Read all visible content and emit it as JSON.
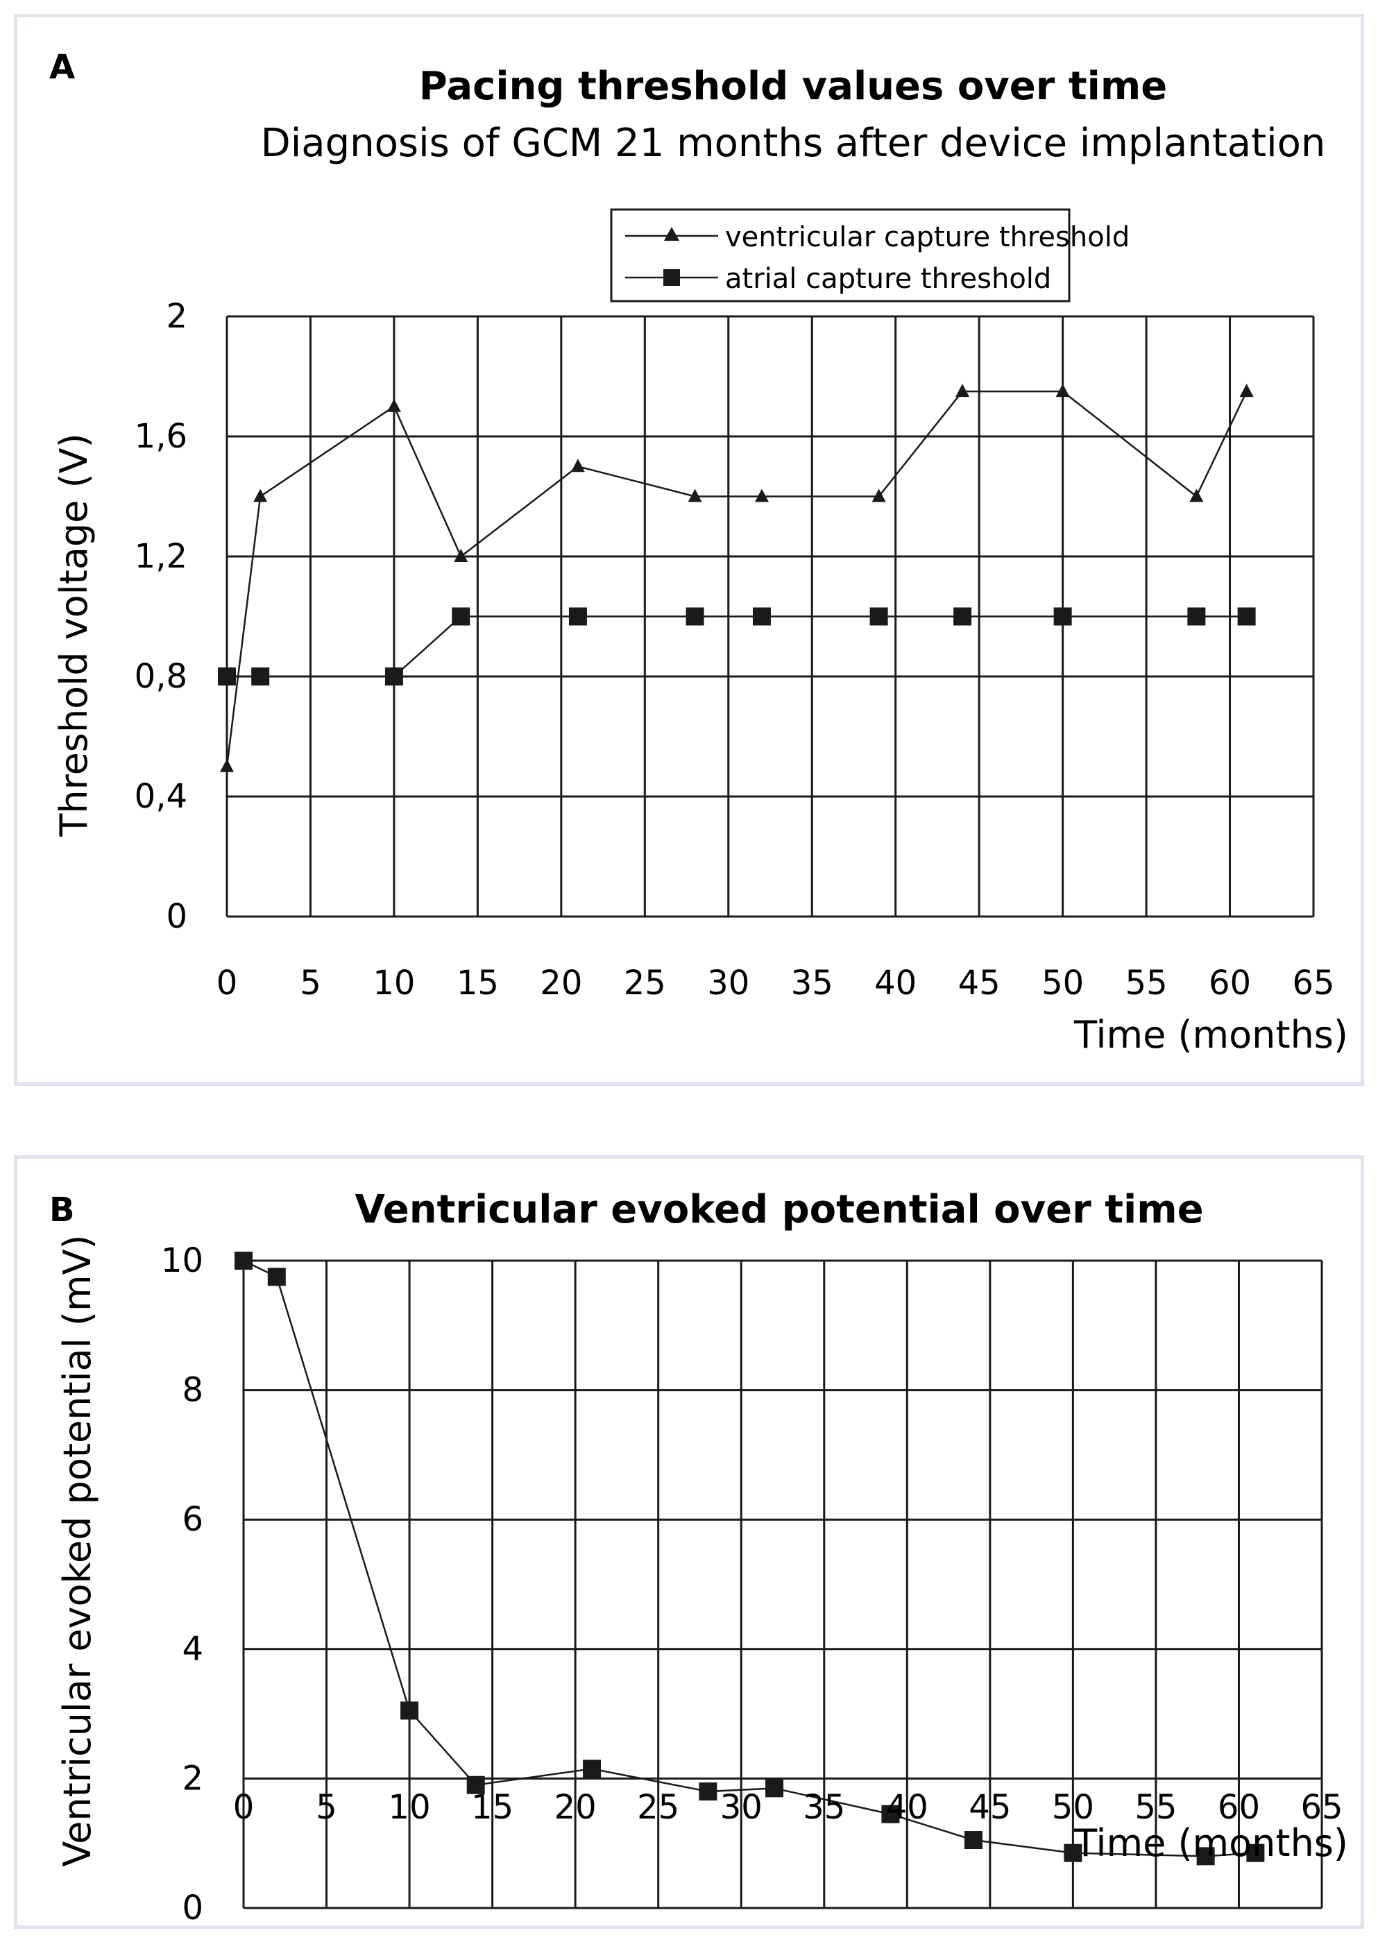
{
  "chart_data": [
    {
      "panel_label": "A",
      "type": "line",
      "title": "Pacing threshold values over time",
      "subtitle": "Diagnosis of GCM 21 months after device implantation",
      "xlabel": "Time (months)",
      "ylabel": "Threshold voltage (V)",
      "xlim": [
        0,
        65
      ],
      "ylim": [
        0,
        2
      ],
      "xticks": [
        0,
        5,
        10,
        15,
        20,
        25,
        30,
        35,
        40,
        45,
        50,
        55,
        60,
        65
      ],
      "yticks": [
        0,
        0.4,
        0.8,
        1.2,
        1.6,
        2
      ],
      "ytick_labels": [
        "0",
        "0,4",
        "0,8",
        "1,2",
        "1,6",
        "2"
      ],
      "grid": true,
      "legend_position": "top-right",
      "series": [
        {
          "name": "ventricular capture threshold",
          "marker": "triangle",
          "x": [
            0,
            2,
            10,
            14,
            21,
            28,
            32,
            39,
            44,
            50,
            58,
            61
          ],
          "y": [
            0.5,
            1.4,
            1.7,
            1.2,
            1.5,
            1.4,
            1.4,
            1.4,
            1.75,
            1.75,
            1.4,
            1.75
          ]
        },
        {
          "name": "atrial capture threshold",
          "marker": "square",
          "x": [
            0,
            2,
            10,
            14,
            21,
            28,
            32,
            39,
            44,
            50,
            58,
            61
          ],
          "y": [
            0.8,
            0.8,
            0.8,
            1.0,
            1.0,
            1.0,
            1.0,
            1.0,
            1.0,
            1.0,
            1.0,
            1.0
          ]
        }
      ]
    },
    {
      "panel_label": "B",
      "type": "line",
      "title": "Ventricular evoked potential over time",
      "xlabel": "Time (months)",
      "ylabel": "Ventricular evoked potential (mV)",
      "xlim": [
        0,
        65
      ],
      "ylim": [
        0,
        10
      ],
      "xticks": [
        0,
        5,
        10,
        15,
        20,
        25,
        30,
        35,
        40,
        45,
        50,
        55,
        60,
        65
      ],
      "yticks": [
        0,
        2,
        4,
        6,
        8,
        10
      ],
      "ytick_labels": [
        "0",
        "2",
        "4",
        "6",
        "8",
        "10"
      ],
      "grid": true,
      "series": [
        {
          "name": "ventricular evoked potential",
          "marker": "square",
          "x": [
            0,
            2,
            10,
            14,
            21,
            28,
            32,
            39,
            44,
            50,
            58,
            61
          ],
          "y": [
            10.0,
            9.75,
            3.05,
            1.9,
            2.15,
            1.8,
            1.85,
            1.45,
            1.05,
            0.85,
            0.8,
            0.85
          ]
        }
      ]
    }
  ]
}
